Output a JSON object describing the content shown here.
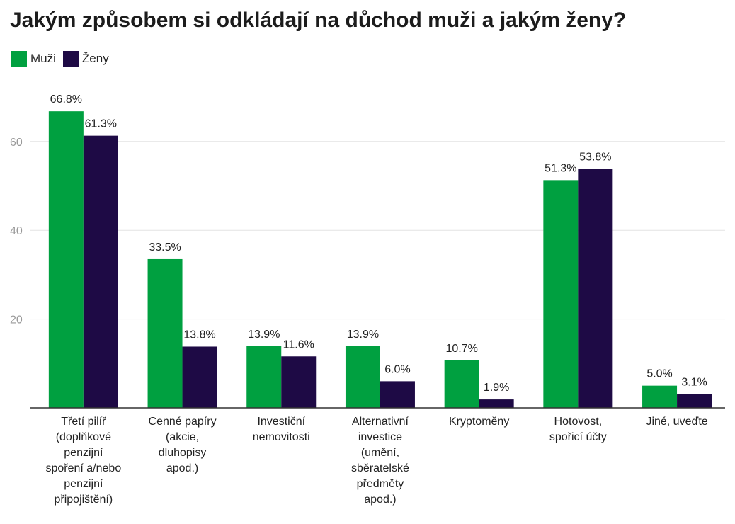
{
  "chart_data": {
    "type": "bar",
    "title": "Jakým způsobem si odkládají na důchod muži a jakým ženy?",
    "categories": [
      [
        "Třetí pilíř",
        "(doplňkové",
        "penzijní",
        "spoření a/nebo",
        "penzijní",
        "připojištění)"
      ],
      [
        "Cenné papíry",
        "(akcie,",
        "dluhopisy",
        "apod.)"
      ],
      [
        "Investiční",
        "nemovitosti"
      ],
      [
        "Alternativní",
        "investice",
        "(umění,",
        "sběratelské",
        "předměty",
        "apod.)"
      ],
      [
        "Kryptoměny"
      ],
      [
        "Hotovost,",
        "spořicí účty"
      ],
      [
        "Jiné, uveďte"
      ]
    ],
    "series": [
      {
        "name": "Muži",
        "color": "#00a040",
        "values": [
          66.8,
          33.5,
          13.9,
          13.9,
          10.7,
          51.3,
          5.0
        ],
        "labels": [
          "66.8%",
          "33.5%",
          "13.9%",
          "13.9%",
          "10.7%",
          "51.3%",
          "5.0%"
        ]
      },
      {
        "name": "Ženy",
        "color": "#1e0a45",
        "values": [
          61.3,
          13.8,
          11.6,
          6.0,
          1.9,
          53.8,
          3.1
        ],
        "labels": [
          "61.3%",
          "13.8%",
          "11.6%",
          "6.0%",
          "1.9%",
          "53.8%",
          "3.1%"
        ]
      }
    ],
    "yticks": [
      "20",
      "40",
      "60"
    ],
    "ylim": [
      0,
      70
    ],
    "xlabel": "",
    "ylabel": "",
    "grid": true,
    "legend_position": "top-left"
  }
}
